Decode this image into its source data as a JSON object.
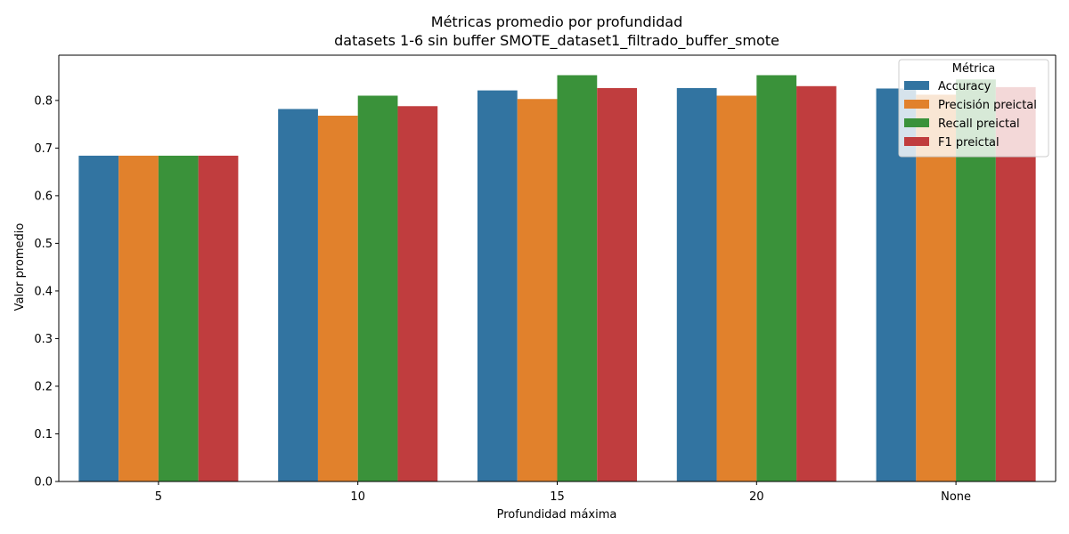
{
  "chart_data": {
    "type": "bar",
    "title": "Métricas promedio por profundidad",
    "subtitle": "datasets 1-6 sin buffer SMOTE_dataset1_filtrado_buffer_smote",
    "xlabel": "Profundidad máxima",
    "ylabel": "Valor promedio",
    "categories": [
      "5",
      "10",
      "15",
      "20",
      "None"
    ],
    "ylim": [
      0,
      0.895
    ],
    "yticks": [
      "0.0",
      "0.1",
      "0.2",
      "0.3",
      "0.4",
      "0.5",
      "0.6",
      "0.7",
      "0.8"
    ],
    "grid": false,
    "legend": {
      "title": "Métrica",
      "position": "top-right"
    },
    "series": [
      {
        "name": "Accuracy",
        "color": "#3274a1",
        "values": [
          0.684,
          0.782,
          0.821,
          0.826,
          0.825
        ]
      },
      {
        "name": "Precisión preictal",
        "color": "#e1812c",
        "values": [
          0.684,
          0.768,
          0.803,
          0.81,
          0.812
        ]
      },
      {
        "name": "Recall preictal",
        "color": "#3a923a",
        "values": [
          0.684,
          0.81,
          0.853,
          0.853,
          0.844
        ]
      },
      {
        "name": "F1 preictal",
        "color": "#c03d3e",
        "values": [
          0.684,
          0.788,
          0.826,
          0.83,
          0.828
        ]
      }
    ]
  }
}
